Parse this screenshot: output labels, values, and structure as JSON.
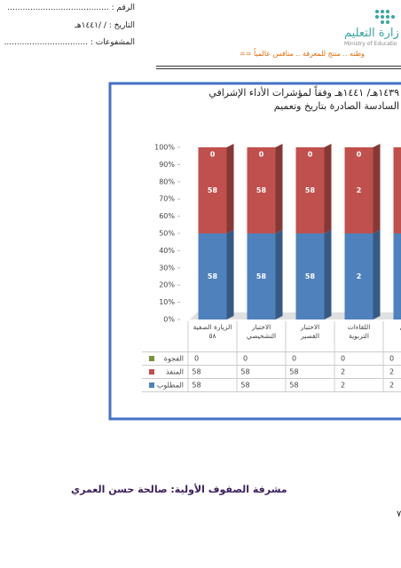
{
  "header": {
    "number_label": "الرقم : ........................................",
    "date_label": "التاريخ :  /   /١٤٤١هـ",
    "attachments_label": "المشفوعات : .................................",
    "ministry_ar": "زارة التعليم",
    "ministry_en": "Ministry of Educatio",
    "slogan": "وطنه .. منتج للمعرفة .. منافس عالمياً =="
  },
  "chart_data": {
    "type": "stacked_bar_100",
    "title_lines": [
      "١٤٣٩هـ/ ١٤٤١هـ وفقاً لمؤشرات الأداء الإشرافي",
      "السادسة الصادرة بتاريخ وتعميم"
    ],
    "categories": [
      "الزيارة الصفية\n٥٨",
      "الاختبار\nالتشخيصي",
      "الاختبار\nالقصير",
      "اللقاءات\nالتربوية",
      "العمل"
    ],
    "series": [
      {
        "name": "الفجوة",
        "color": "#77933c",
        "values": [
          0,
          0,
          0,
          0,
          0
        ]
      },
      {
        "name": "المنفذ",
        "color": "#c0504d",
        "values": [
          58,
          58,
          58,
          2,
          2
        ]
      },
      {
        "name": "المطلوب",
        "color": "#4f81bd",
        "values": [
          58,
          58,
          58,
          2,
          2
        ]
      }
    ],
    "ylim": [
      0,
      100
    ],
    "yticks": [
      {
        "value": 0,
        "label": "0%"
      },
      {
        "value": 10,
        "label": "10%"
      },
      {
        "value": 20,
        "label": "20%"
      },
      {
        "value": 30,
        "label": "30%"
      },
      {
        "value": 40,
        "label": "40%"
      },
      {
        "value": 50,
        "label": "50%"
      },
      {
        "value": 60,
        "label": "60%"
      },
      {
        "value": 70,
        "label": "70%"
      },
      {
        "value": 80,
        "label": "80%"
      },
      {
        "value": 90,
        "label": "90%"
      },
      {
        "value": 100,
        "label": "100%"
      }
    ]
  },
  "footer": {
    "signature": "مشرفة الصفوف الأولية: صالحة حسن العمري",
    "page_number": "٧"
  }
}
